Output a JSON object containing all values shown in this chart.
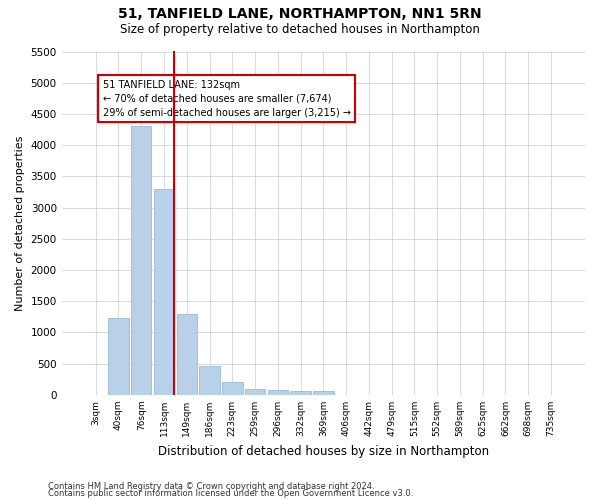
{
  "title": "51, TANFIELD LANE, NORTHAMPTON, NN1 5RN",
  "subtitle": "Size of property relative to detached houses in Northampton",
  "xlabel": "Distribution of detached houses by size in Northampton",
  "ylabel": "Number of detached properties",
  "categories": [
    "3sqm",
    "40sqm",
    "76sqm",
    "113sqm",
    "149sqm",
    "186sqm",
    "223sqm",
    "259sqm",
    "296sqm",
    "332sqm",
    "369sqm",
    "406sqm",
    "442sqm",
    "479sqm",
    "515sqm",
    "552sqm",
    "589sqm",
    "625sqm",
    "662sqm",
    "698sqm",
    "735sqm"
  ],
  "values": [
    0,
    1240,
    4300,
    3290,
    1290,
    470,
    200,
    100,
    75,
    70,
    60,
    0,
    0,
    0,
    0,
    0,
    0,
    0,
    0,
    0,
    0
  ],
  "bar_color": "#b8d0e8",
  "bar_edgecolor": "#8ab4d4",
  "vline_x_index": 3,
  "vline_color": "#cc0000",
  "annotation_text": "51 TANFIELD LANE: 132sqm\n← 70% of detached houses are smaller (7,674)\n29% of semi-detached houses are larger (3,215) →",
  "annotation_box_color": "#ffffff",
  "annotation_box_edgecolor": "#cc0000",
  "ylim": [
    0,
    5500
  ],
  "yticks": [
    0,
    500,
    1000,
    1500,
    2000,
    2500,
    3000,
    3500,
    4000,
    4500,
    5000,
    5500
  ],
  "footnote1": "Contains HM Land Registry data © Crown copyright and database right 2024.",
  "footnote2": "Contains public sector information licensed under the Open Government Licence v3.0.",
  "background_color": "#ffffff",
  "grid_color": "#cccccc"
}
